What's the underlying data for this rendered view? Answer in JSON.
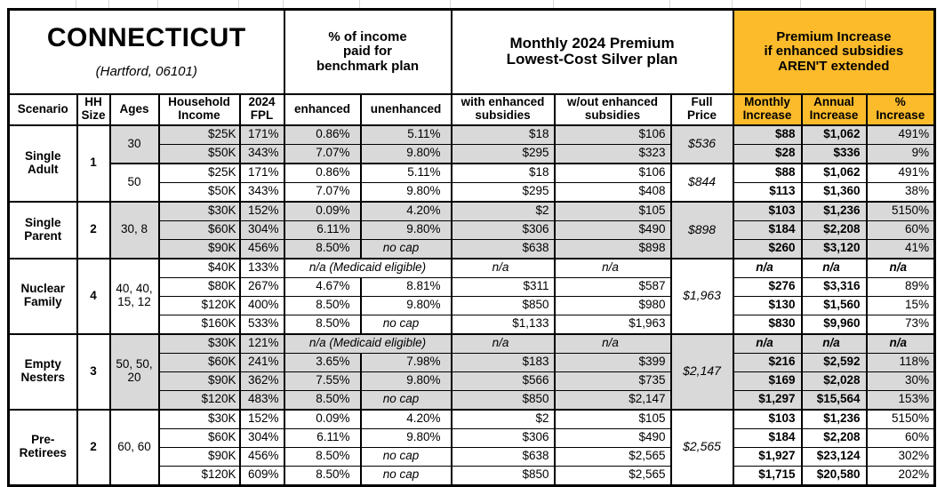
{
  "title": {
    "state": "CONNECTICUT",
    "location": "(Hartford, 06101)"
  },
  "column_groups": {
    "income_pct": "% of income\npaid for\nbenchmark plan",
    "premium": "Monthly 2024 Premium\nLowest-Cost Silver plan",
    "increase": "Premium Increase\nif enhanced subsidies\nAREN'T extended"
  },
  "columns": [
    "Scenario",
    "HH\nSize",
    "Ages",
    "Household\nIncome",
    "2024\nFPL",
    "enhanced",
    "unenhanced",
    "with enhanced\nsubsidies",
    "w/out enhanced\nsubsidies",
    "Full\nPrice",
    "Monthly\nIncrease",
    "Annual\nIncrease",
    "%\nIncrease"
  ],
  "colors": {
    "highlight_orange": "#FBBB2B",
    "row_gray": "#D9D9D9",
    "border_black": "#000000"
  },
  "scenarios": [
    {
      "name": "Single Adult",
      "hh_size": "1",
      "age_groups": [
        {
          "ages": "30",
          "shaded": true,
          "full_price": "$536",
          "rows": [
            {
              "income": "$25K",
              "fpl": "171%",
              "enhanced": "0.86%",
              "unenhanced": "5.11%",
              "with_subsidies": "$18",
              "without_subsidies": "$106",
              "monthly_increase": "$88",
              "annual_increase": "$1,062",
              "pct_increase": "491%"
            },
            {
              "income": "$50K",
              "fpl": "343%",
              "enhanced": "7.07%",
              "unenhanced": "9.80%",
              "with_subsidies": "$295",
              "without_subsidies": "$323",
              "monthly_increase": "$28",
              "annual_increase": "$336",
              "pct_increase": "9%"
            }
          ]
        },
        {
          "ages": "50",
          "shaded": false,
          "full_price": "$844",
          "rows": [
            {
              "income": "$25K",
              "fpl": "171%",
              "enhanced": "0.86%",
              "unenhanced": "5.11%",
              "with_subsidies": "$18",
              "without_subsidies": "$106",
              "monthly_increase": "$88",
              "annual_increase": "$1,062",
              "pct_increase": "491%"
            },
            {
              "income": "$50K",
              "fpl": "343%",
              "enhanced": "7.07%",
              "unenhanced": "9.80%",
              "with_subsidies": "$295",
              "without_subsidies": "$408",
              "monthly_increase": "$113",
              "annual_increase": "$1,360",
              "pct_increase": "38%"
            }
          ]
        }
      ]
    },
    {
      "name": "Single Parent",
      "hh_size": "2",
      "age_groups": [
        {
          "ages": "30, 8",
          "shaded": true,
          "full_price": "$898",
          "rows": [
            {
              "income": "$30K",
              "fpl": "152%",
              "enhanced": "0.09%",
              "unenhanced": "4.20%",
              "with_subsidies": "$2",
              "without_subsidies": "$105",
              "monthly_increase": "$103",
              "annual_increase": "$1,236",
              "pct_increase": "5150%"
            },
            {
              "income": "$60K",
              "fpl": "304%",
              "enhanced": "6.11%",
              "unenhanced": "9.80%",
              "with_subsidies": "$306",
              "without_subsidies": "$490",
              "monthly_increase": "$184",
              "annual_increase": "$2,208",
              "pct_increase": "60%"
            },
            {
              "income": "$90K",
              "fpl": "456%",
              "enhanced": "8.50%",
              "unenhanced": "no cap",
              "with_subsidies": "$638",
              "without_subsidies": "$898",
              "monthly_increase": "$260",
              "annual_increase": "$3,120",
              "pct_increase": "41%"
            }
          ]
        }
      ]
    },
    {
      "name": "Nuclear Family",
      "hh_size": "4",
      "age_groups": [
        {
          "ages": "40, 40, 15, 12",
          "shaded": false,
          "full_price": "$1,963",
          "rows": [
            {
              "income": "$40K",
              "fpl": "133%",
              "medicaid_note": "n/a (Medicaid eligible)",
              "with_subsidies": "n/a",
              "without_subsidies": "n/a",
              "monthly_increase": "n/a",
              "annual_increase": "n/a",
              "pct_increase": "n/a"
            },
            {
              "income": "$80K",
              "fpl": "267%",
              "enhanced": "4.67%",
              "unenhanced": "8.81%",
              "with_subsidies": "$311",
              "without_subsidies": "$587",
              "monthly_increase": "$276",
              "annual_increase": "$3,316",
              "pct_increase": "89%"
            },
            {
              "income": "$120K",
              "fpl": "400%",
              "enhanced": "8.50%",
              "unenhanced": "9.80%",
              "with_subsidies": "$850",
              "without_subsidies": "$980",
              "monthly_increase": "$130",
              "annual_increase": "$1,560",
              "pct_increase": "15%"
            },
            {
              "income": "$160K",
              "fpl": "533%",
              "enhanced": "8.50%",
              "unenhanced": "no cap",
              "with_subsidies": "$1,133",
              "without_subsidies": "$1,963",
              "monthly_increase": "$830",
              "annual_increase": "$9,960",
              "pct_increase": "73%"
            }
          ]
        }
      ]
    },
    {
      "name": "Empty Nesters",
      "hh_size": "3",
      "age_groups": [
        {
          "ages": "50, 50, 20",
          "shaded": true,
          "full_price": "$2,147",
          "rows": [
            {
              "income": "$30K",
              "fpl": "121%",
              "medicaid_note": "n/a (Medicaid eligible)",
              "with_subsidies": "n/a",
              "without_subsidies": "n/a",
              "monthly_increase": "n/a",
              "annual_increase": "n/a",
              "pct_increase": "n/a"
            },
            {
              "income": "$60K",
              "fpl": "241%",
              "enhanced": "3.65%",
              "unenhanced": "7.98%",
              "with_subsidies": "$183",
              "without_subsidies": "$399",
              "monthly_increase": "$216",
              "annual_increase": "$2,592",
              "pct_increase": "118%"
            },
            {
              "income": "$90K",
              "fpl": "362%",
              "enhanced": "7.55%",
              "unenhanced": "9.80%",
              "with_subsidies": "$566",
              "without_subsidies": "$735",
              "monthly_increase": "$169",
              "annual_increase": "$2,028",
              "pct_increase": "30%"
            },
            {
              "income": "$120K",
              "fpl": "483%",
              "enhanced": "8.50%",
              "unenhanced": "no cap",
              "with_subsidies": "$850",
              "without_subsidies": "$2,147",
              "monthly_increase": "$1,297",
              "annual_increase": "$15,564",
              "pct_increase": "153%"
            }
          ]
        }
      ]
    },
    {
      "name": "Pre-Retirees",
      "hh_size": "2",
      "age_groups": [
        {
          "ages": "60, 60",
          "shaded": false,
          "full_price": "$2,565",
          "rows": [
            {
              "income": "$30K",
              "fpl": "152%",
              "enhanced": "0.09%",
              "unenhanced": "4.20%",
              "with_subsidies": "$2",
              "without_subsidies": "$105",
              "monthly_increase": "$103",
              "annual_increase": "$1,236",
              "pct_increase": "5150%"
            },
            {
              "income": "$60K",
              "fpl": "304%",
              "enhanced": "6.11%",
              "unenhanced": "9.80%",
              "with_subsidies": "$306",
              "without_subsidies": "$490",
              "monthly_increase": "$184",
              "annual_increase": "$2,208",
              "pct_increase": "60%"
            },
            {
              "income": "$90K",
              "fpl": "456%",
              "enhanced": "8.50%",
              "unenhanced": "no cap",
              "with_subsidies": "$638",
              "without_subsidies": "$2,565",
              "monthly_increase": "$1,927",
              "annual_increase": "$23,124",
              "pct_increase": "302%"
            },
            {
              "income": "$120K",
              "fpl": "609%",
              "enhanced": "8.50%",
              "unenhanced": "no cap",
              "with_subsidies": "$850",
              "without_subsidies": "$2,565",
              "monthly_increase": "$1,715",
              "annual_increase": "$20,580",
              "pct_increase": "202%"
            }
          ]
        }
      ]
    }
  ]
}
